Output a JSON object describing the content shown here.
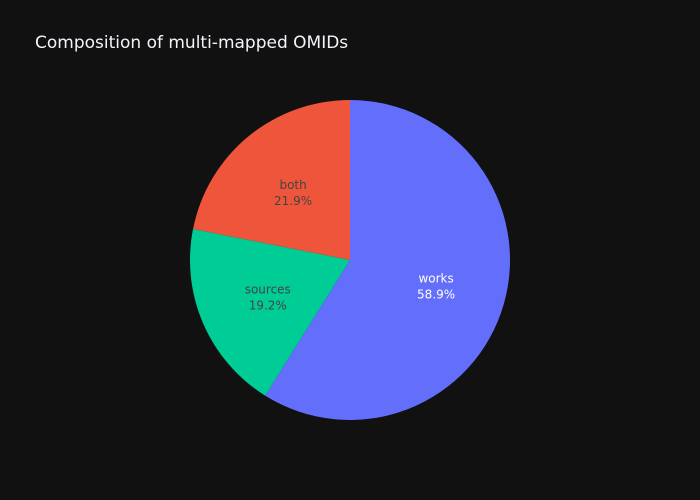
{
  "chart_data": {
    "type": "pie",
    "title": "Composition of multi-mapped OMIDs",
    "slices": [
      {
        "label": "works",
        "percent_text": "58.9%",
        "value": 58.9,
        "color": "#636efa",
        "text_color": "#ffffff"
      },
      {
        "label": "sources",
        "percent_text": "19.2%",
        "value": 19.2,
        "color": "#00cc96",
        "text_color": "#444444"
      },
      {
        "label": "both",
        "percent_text": "21.9%",
        "value": 21.9,
        "color": "#ef553b",
        "text_color": "#444444"
      }
    ],
    "direction": "clockwise",
    "start": "12 o'clock"
  },
  "background": "#111111"
}
